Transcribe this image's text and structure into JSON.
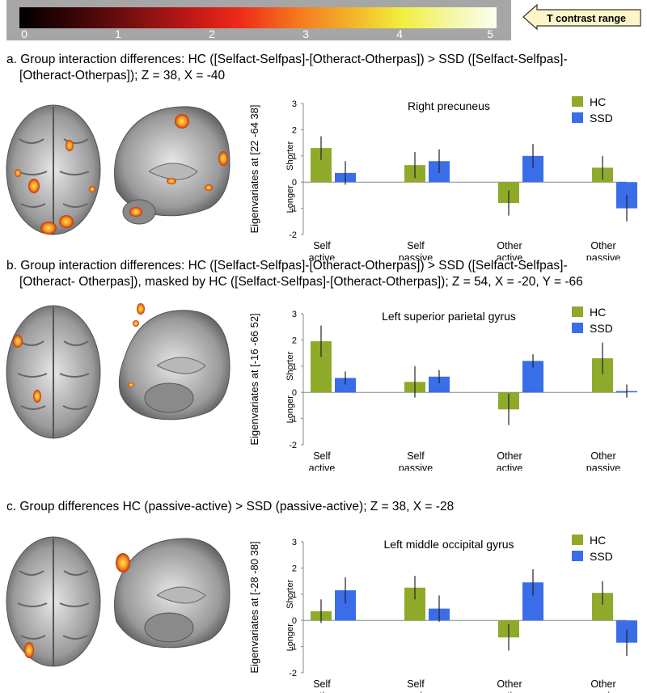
{
  "colorbar": {
    "ticks": [
      "0",
      "1",
      "2",
      "3",
      "4",
      "5"
    ],
    "label": "T contrast range"
  },
  "panels": [
    {
      "title_line1": "a. Group interaction differences: HC ([Selfact-Selfpas]-[Otheract-Otherpas]) > SSD ([Selfact-Selfpas]-",
      "title_line2": "[Otheract-Otherpas]); Z = 38, X = -40"
    },
    {
      "title_line1": "b. Group interaction differences: HC ([Selfact-Selfpas]-[Otheract-Otherpas]) > SSD ([Selfact-Selfpas]-",
      "title_line2": "[Otheract- Otherpas]), masked by HC ([Selfact-Selfpas]-[Otheract-Otherpas]); Z = 54, X = -20, Y = -66"
    },
    {
      "title_line1": "c. Group differences HC (passive-active) > SSD (passive-active);  Z = 38, X = -28",
      "title_line2": ""
    }
  ],
  "colors": {
    "HC": "#8faa2b",
    "SSD": "#3a6ee8"
  },
  "chart_data": [
    {
      "type": "bar",
      "title": "Right precuneus",
      "ylabel": "Eigenvariates at [22 -64 38]",
      "shorter_label": "Shorter",
      "longer_label": "Longer",
      "yticks": [
        "3",
        "2",
        "1",
        "0",
        "-1",
        "-2"
      ],
      "ylim": [
        -2,
        3
      ],
      "categories": [
        [
          "Self",
          "active"
        ],
        [
          "Self",
          "passive"
        ],
        [
          "Other",
          "active"
        ],
        [
          "Other",
          "passive"
        ]
      ],
      "series": [
        {
          "name": "HC",
          "values": [
            1.3,
            0.65,
            -0.8,
            0.55
          ],
          "errors": [
            0.45,
            0.5,
            0.48,
            0.45
          ]
        },
        {
          "name": "SSD",
          "values": [
            0.35,
            0.8,
            1.0,
            -1.0
          ],
          "errors": [
            0.45,
            0.45,
            0.45,
            0.5
          ]
        }
      ]
    },
    {
      "type": "bar",
      "title": "Left superior parietal gyrus",
      "ylabel": "Eigenvariates at [-16 -66 52]",
      "shorter_label": "Shorter",
      "longer_label": "Longer",
      "yticks": [
        "3",
        "2",
        "1",
        "0",
        "-1",
        "-2"
      ],
      "ylim": [
        -2,
        3
      ],
      "categories": [
        [
          "Self",
          "active"
        ],
        [
          "Self",
          "passive"
        ],
        [
          "Other",
          "active"
        ],
        [
          "Other",
          "passive"
        ]
      ],
      "series": [
        {
          "name": "HC",
          "values": [
            1.95,
            0.4,
            -0.65,
            1.3
          ],
          "errors": [
            0.6,
            0.6,
            0.6,
            0.6
          ]
        },
        {
          "name": "SSD",
          "values": [
            0.55,
            0.6,
            1.2,
            0.05
          ],
          "errors": [
            0.25,
            0.25,
            0.25,
            0.25
          ]
        }
      ]
    },
    {
      "type": "bar",
      "title": "Left middle occipital gyrus",
      "ylabel": "Eigenvariates at [-28 -80 38]",
      "shorter_label": "Shorter",
      "longer_label": "Longer",
      "yticks": [
        "3",
        "2",
        "1",
        "0",
        "-1",
        "-2"
      ],
      "ylim": [
        -2,
        3
      ],
      "categories": [
        [
          "Self",
          "active"
        ],
        [
          "Self",
          "passive"
        ],
        [
          "Other",
          "active"
        ],
        [
          "Other",
          "passive"
        ]
      ],
      "series": [
        {
          "name": "HC",
          "values": [
            0.35,
            1.25,
            -0.65,
            1.05
          ],
          "errors": [
            0.45,
            0.45,
            0.5,
            0.45
          ]
        },
        {
          "name": "SSD",
          "values": [
            1.15,
            0.45,
            1.45,
            -0.85
          ],
          "errors": [
            0.5,
            0.5,
            0.5,
            0.5
          ]
        }
      ]
    }
  ]
}
